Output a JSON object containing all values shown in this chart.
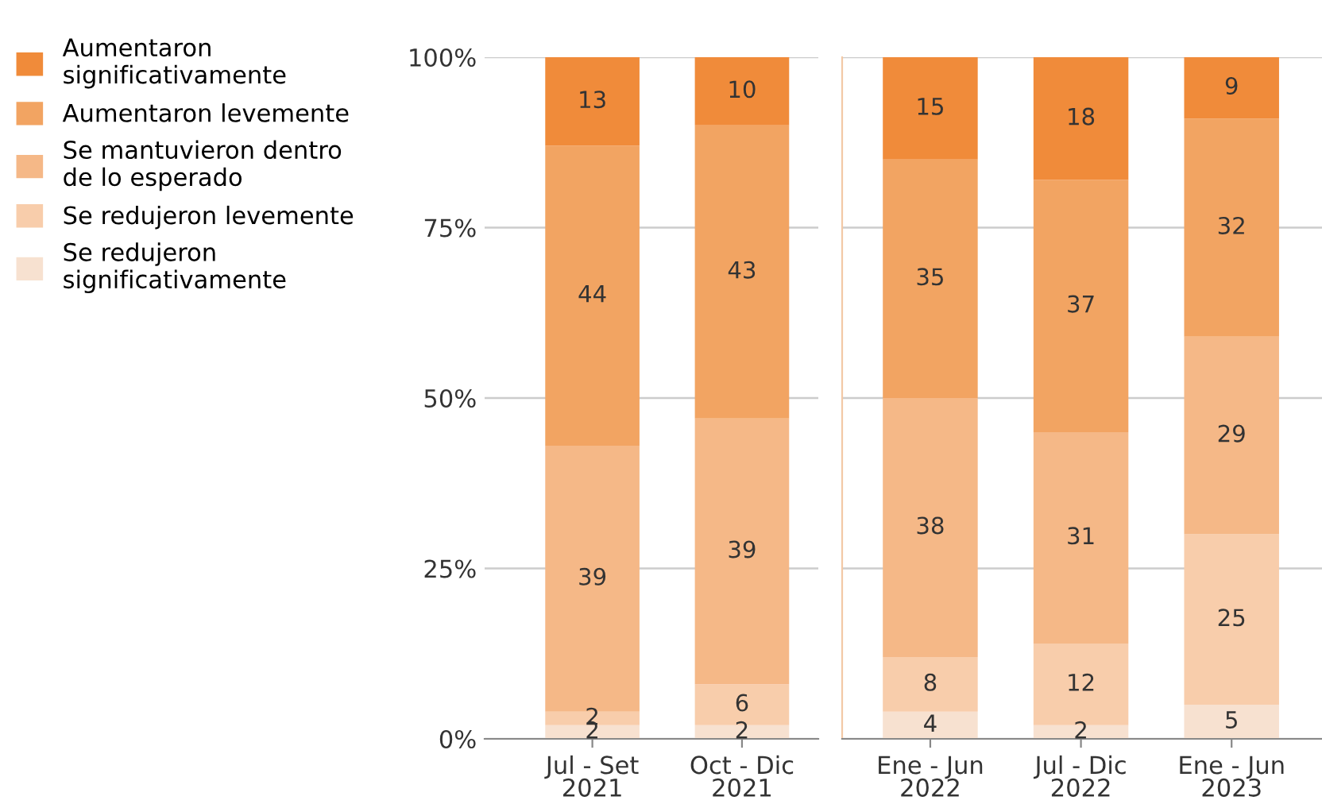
{
  "chart_data": [
    {
      "type": "bar",
      "stacked": true,
      "categories": [
        "Jul - Set\n2021",
        "Oct - Dic\n2021"
      ],
      "series": [
        {
          "name": "Se redujeron\nsignificativamente",
          "color": "#f7e1d0",
          "values": [
            2,
            2
          ]
        },
        {
          "name": "Se redujeron levemente",
          "color": "#f8cdab",
          "values": [
            2,
            6
          ]
        },
        {
          "name": "Se mantuvieron dentro\nde lo esperado",
          "color": "#f5b887",
          "values": [
            39,
            39
          ]
        },
        {
          "name": "Aumentaron levemente",
          "color": "#f2a462",
          "values": [
            44,
            43
          ]
        },
        {
          "name": "Aumentaron\nsignificativamente",
          "color": "#f08b3a",
          "values": [
            13,
            10
          ]
        }
      ],
      "ylim": [
        0,
        100
      ],
      "yticks": [
        {
          "value": 0,
          "label": "0%"
        },
        {
          "value": 25,
          "label": "25%"
        },
        {
          "value": 50,
          "label": "50%"
        },
        {
          "value": 75,
          "label": "75%"
        },
        {
          "value": 100,
          "label": "100%"
        }
      ],
      "grid": "y",
      "data_labels": true,
      "legend": "left"
    },
    {
      "type": "bar",
      "stacked": true,
      "categories": [
        "Ene - Jun\n2022",
        "Jul - Dic\n2022",
        "Ene - Jun\n2023"
      ],
      "series": [
        {
          "color": "#f7e1d0",
          "values": [
            4,
            2,
            5
          ]
        },
        {
          "color": "#f8cdab",
          "values": [
            8,
            12,
            25
          ]
        },
        {
          "color": "#f5b887",
          "values": [
            38,
            31,
            29
          ]
        },
        {
          "color": "#f2a462",
          "values": [
            35,
            37,
            32
          ]
        },
        {
          "color": "#f08b3a",
          "values": [
            15,
            18,
            9
          ]
        }
      ],
      "ylim": [
        0,
        100
      ],
      "yticks": [
        0,
        25,
        50,
        75,
        100
      ],
      "grid": "y",
      "data_labels": true,
      "tick_labels": "x"
    }
  ]
}
